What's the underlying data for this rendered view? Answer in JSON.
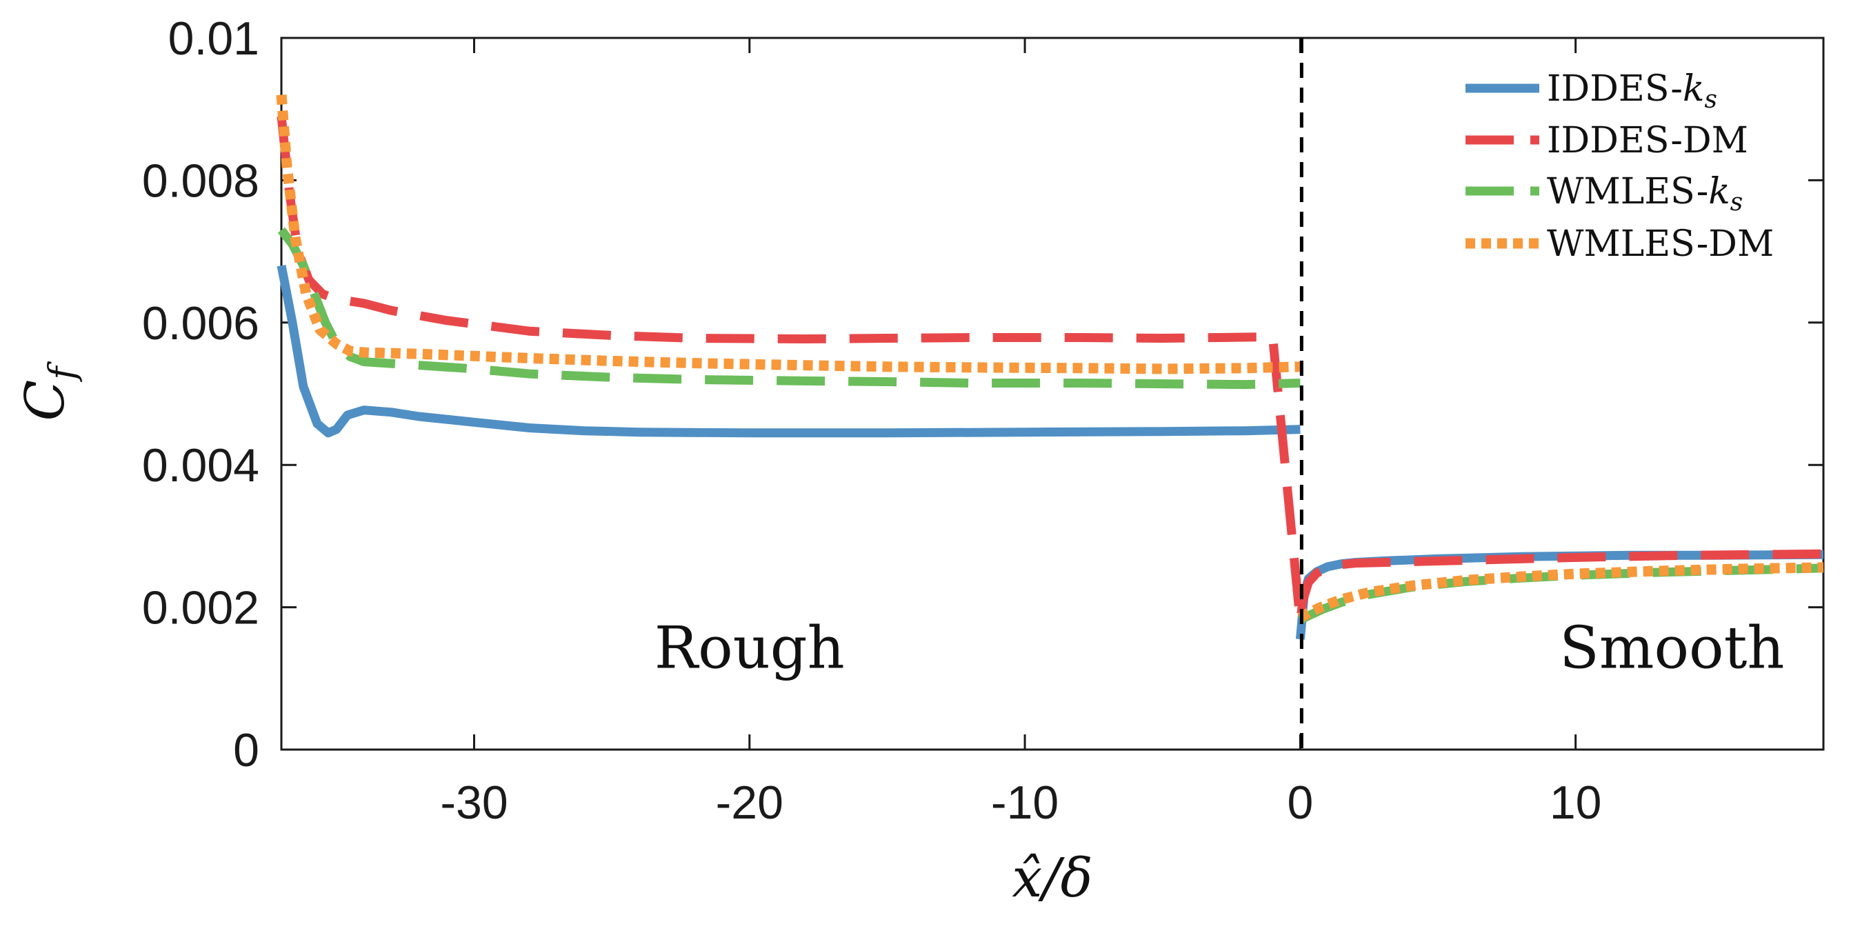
{
  "chart_data": {
    "type": "line",
    "x_label": "x̂/δ",
    "y_label": "C",
    "y_label_subscript": "f",
    "x_ticks": [
      "-30",
      "-20",
      "-10",
      "0",
      "10"
    ],
    "x_tick_values": [
      -30,
      -20,
      -10,
      0,
      10
    ],
    "y_ticks": [
      "0",
      "0.002",
      "0.004",
      "0.006",
      "0.008",
      "0.01"
    ],
    "y_tick_values": [
      0,
      0.002,
      0.004,
      0.006,
      0.008,
      0.01
    ],
    "xlim": [
      -37,
      19
    ],
    "ylim": [
      0,
      0.01
    ],
    "grid": false,
    "legend_position": "top-right",
    "annotations": [
      {
        "text": "Rough",
        "x": -20,
        "y": 0.00115
      },
      {
        "text": "Smooth",
        "x": 13.5,
        "y": 0.00115
      }
    ],
    "vertical_line": {
      "x": 0.05,
      "style": "dashed"
    },
    "series": [
      {
        "name": "IDDES-",
        "name_symbol": "k",
        "name_subscript": "s",
        "color": "#4f8fc4",
        "style": "solid",
        "x": [
          -37,
          -36.6,
          -36.2,
          -35.7,
          -35.3,
          -35,
          -34.6,
          -34,
          -33,
          -32,
          -30,
          -28,
          -26,
          -24,
          -20,
          -15,
          -10,
          -5,
          -2,
          0,
          0,
          0.15,
          0.3,
          0.6,
          1,
          1.5,
          2,
          3,
          5,
          8,
          10,
          12,
          15,
          19
        ],
        "y": [
          0.0068,
          0.006,
          0.0051,
          0.00458,
          0.00445,
          0.0045,
          0.0047,
          0.00477,
          0.00474,
          0.00468,
          0.0046,
          0.00452,
          0.00448,
          0.00446,
          0.00445,
          0.00445,
          0.00446,
          0.00447,
          0.00448,
          0.0045,
          0.00155,
          0.0022,
          0.0024,
          0.0025,
          0.00257,
          0.00261,
          0.00263,
          0.00265,
          0.00268,
          0.00271,
          0.00272,
          0.00273,
          0.00273,
          0.00274
        ]
      },
      {
        "name": "IDDES-DM",
        "color": "#e8474a",
        "style": "dashed",
        "x": [
          -37,
          -36.7,
          -36.4,
          -36,
          -35.5,
          -35,
          -34.5,
          -34,
          -33,
          -31,
          -28,
          -25,
          -22,
          -18,
          -15,
          -12,
          -8,
          -5,
          -3,
          -1,
          0,
          0.1,
          0.3,
          0.6,
          1,
          1.5,
          2,
          3,
          5,
          8,
          10,
          14,
          19
        ],
        "y": [
          0.0089,
          0.0078,
          0.007,
          0.0066,
          0.0064,
          0.00633,
          0.0063,
          0.00627,
          0.00617,
          0.00603,
          0.00588,
          0.00582,
          0.00578,
          0.00577,
          0.00578,
          0.00579,
          0.00579,
          0.00578,
          0.00579,
          0.0058,
          0.0018,
          0.0021,
          0.00235,
          0.00248,
          0.00255,
          0.0026,
          0.00262,
          0.00263,
          0.00265,
          0.00268,
          0.0027,
          0.00273,
          0.00275
        ]
      },
      {
        "name": "WMLES-",
        "name_symbol": "k",
        "name_subscript": "s",
        "color": "#6abd5a",
        "style": "dashed",
        "x": [
          -37,
          -36.6,
          -36.2,
          -35.8,
          -35.4,
          -35,
          -34.5,
          -34,
          -32,
          -30,
          -28,
          -25,
          -22,
          -18,
          -15,
          -12,
          -8,
          -5,
          -2,
          0,
          0,
          0.3,
          0.8,
          1.5,
          2.5,
          4,
          6,
          8,
          10,
          13,
          16,
          19
        ],
        "y": [
          0.0073,
          0.0071,
          0.0068,
          0.0064,
          0.006,
          0.0057,
          0.00552,
          0.00545,
          0.0054,
          0.00535,
          0.00528,
          0.00523,
          0.0052,
          0.00518,
          0.00517,
          0.00515,
          0.00515,
          0.00514,
          0.00513,
          0.00515,
          0.00182,
          0.00188,
          0.00197,
          0.00207,
          0.00218,
          0.00228,
          0.00236,
          0.00241,
          0.00245,
          0.00249,
          0.00252,
          0.00255
        ]
      },
      {
        "name": "WMLES-DM",
        "color": "#f7983a",
        "style": "dotted",
        "x": [
          -37,
          -36.8,
          -36.5,
          -36.1,
          -35.6,
          -35,
          -34.5,
          -34,
          -32,
          -30,
          -28,
          -25,
          -22,
          -18,
          -15,
          -12,
          -8,
          -5,
          -2,
          0,
          0,
          0.3,
          0.8,
          1.5,
          2.5,
          4,
          6,
          8,
          10,
          13,
          16,
          19
        ],
        "y": [
          0.0092,
          0.0082,
          0.0072,
          0.0064,
          0.0059,
          0.0057,
          0.0056,
          0.00558,
          0.00556,
          0.00553,
          0.0055,
          0.00546,
          0.00543,
          0.0054,
          0.00538,
          0.00537,
          0.00536,
          0.00535,
          0.00536,
          0.00538,
          0.00185,
          0.00192,
          0.00201,
          0.00211,
          0.00221,
          0.0023,
          0.00238,
          0.00243,
          0.00247,
          0.00251,
          0.00254,
          0.00256
        ]
      }
    ]
  }
}
